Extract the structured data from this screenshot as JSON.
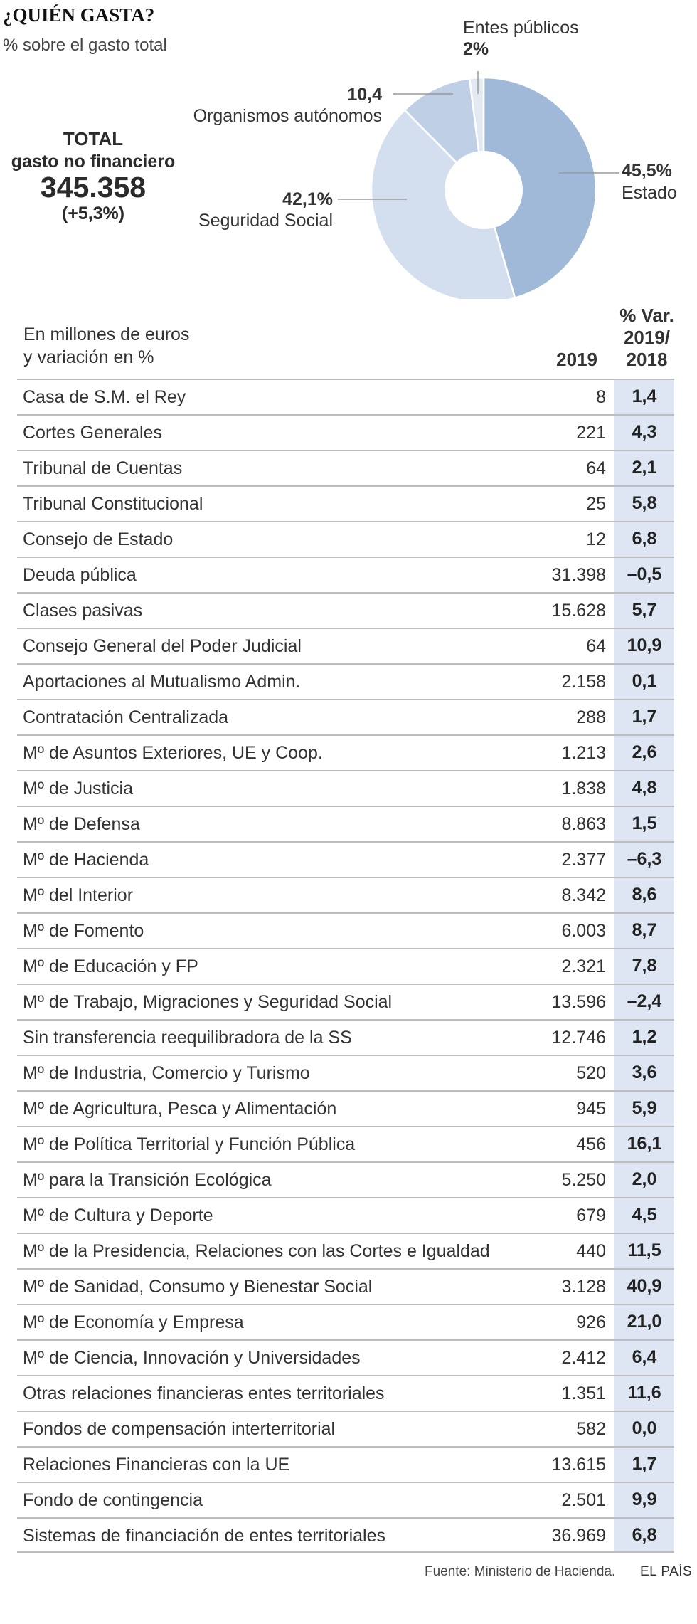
{
  "header": {
    "title": "¿QUIÉN GASTA?",
    "subtitle": "% sobre el gasto total"
  },
  "total": {
    "label_line1": "TOTAL",
    "label_line2": "gasto no financiero",
    "value": "345.358",
    "change": "(+5,3%)"
  },
  "chart_data": {
    "type": "pie",
    "title": "¿QUIÉN GASTA?",
    "subtitle": "% sobre el gasto total",
    "slices": [
      {
        "name": "Estado",
        "value": 45.5,
        "label": "45,5%",
        "color": "#a1b9d8"
      },
      {
        "name": "Seguridad Social",
        "value": 42.1,
        "label": "42,1%",
        "color": "#d3deee"
      },
      {
        "name": "Organismos autónomos",
        "value": 10.4,
        "label": "10,4",
        "color": "#bfcfe6"
      },
      {
        "name": "Entes públicos",
        "value": 2,
        "label": "2%",
        "color": "#e2e9f3"
      }
    ]
  },
  "table": {
    "units_line1": "En millones de euros",
    "units_line2": "y variación en %",
    "col_year": "2019",
    "col_var_line1": "% Var.",
    "col_var_line2": "2019/",
    "col_var_line3": "2018",
    "rows": [
      {
        "name": "Casa de S.M. el Rey",
        "value": "8",
        "var": "1,4"
      },
      {
        "name": "Cortes Generales",
        "value": "221",
        "var": "4,3"
      },
      {
        "name": "Tribunal de Cuentas",
        "value": "64",
        "var": "2,1"
      },
      {
        "name": "Tribunal Constitucional",
        "value": "25",
        "var": "5,8"
      },
      {
        "name": "Consejo de Estado",
        "value": "12",
        "var": "6,8"
      },
      {
        "name": "Deuda pública",
        "value": "31.398",
        "var": "–0,5"
      },
      {
        "name": "Clases pasivas",
        "value": "15.628",
        "var": "5,7"
      },
      {
        "name": "Consejo General del Poder Judicial",
        "value": "64",
        "var": "10,9"
      },
      {
        "name": "Aportaciones al Mutualismo Admin.",
        "value": "2.158",
        "var": "0,1"
      },
      {
        "name": "Contratación Centralizada",
        "value": "288",
        "var": "1,7"
      },
      {
        "name": "Mº de Asuntos Exteriores, UE y Coop.",
        "value": "1.213",
        "var": "2,6"
      },
      {
        "name": "Mº de Justicia",
        "value": "1.838",
        "var": "4,8"
      },
      {
        "name": "Mº de Defensa",
        "value": "8.863",
        "var": "1,5"
      },
      {
        "name": "Mº de Hacienda",
        "value": "2.377",
        "var": "–6,3"
      },
      {
        "name": "Mº del Interior",
        "value": "8.342",
        "var": "8,6"
      },
      {
        "name": "Mº de Fomento",
        "value": "6.003",
        "var": "8,7"
      },
      {
        "name": "Mº de Educación y FP",
        "value": "2.321",
        "var": "7,8"
      },
      {
        "name": "Mº de Trabajo, Migraciones y Seguridad Social",
        "value": "13.596",
        "var": "–2,4"
      },
      {
        "name": "Sin transferencia reequilibradora de la SS",
        "value": "12.746",
        "var": "1,2"
      },
      {
        "name": "Mº de Industria, Comercio y Turismo",
        "value": "520",
        "var": "3,6"
      },
      {
        "name": "Mº de Agricultura, Pesca y Alimentación",
        "value": "945",
        "var": "5,9"
      },
      {
        "name": "Mº de Política Territorial y Función Pública",
        "value": "456",
        "var": "16,1"
      },
      {
        "name": "Mº para la Transición Ecológica",
        "value": "5.250",
        "var": "2,0"
      },
      {
        "name": "Mº de Cultura y Deporte",
        "value": "679",
        "var": "4,5"
      },
      {
        "name": "Mº de la Presidencia, Relaciones con las Cortes e Igualdad",
        "value": "440",
        "var": "11,5"
      },
      {
        "name": "Mº de Sanidad, Consumo y Bienestar Social",
        "value": "3.128",
        "var": "40,9"
      },
      {
        "name": "Mº de Economía y Empresa",
        "value": "926",
        "var": "21,0"
      },
      {
        "name": "Mº de Ciencia, Innovación y Universidades",
        "value": "2.412",
        "var": "6,4"
      },
      {
        "name": "Otras relaciones financieras entes territoriales",
        "value": "1.351",
        "var": "11,6"
      },
      {
        "name": "Fondos de compensación interterritorial",
        "value": "582",
        "var": "0,0"
      },
      {
        "name": "Relaciones Financieras con la UE",
        "value": "13.615",
        "var": "1,7"
      },
      {
        "name": "Fondo de contingencia",
        "value": "2.501",
        "var": "9,9"
      },
      {
        "name": "Sistemas de financiación de entes territoriales",
        "value": "36.969",
        "var": "6,8"
      }
    ]
  },
  "footer": {
    "source": "Fuente: Ministerio de Hacienda.",
    "brand": "EL PAÍS"
  }
}
